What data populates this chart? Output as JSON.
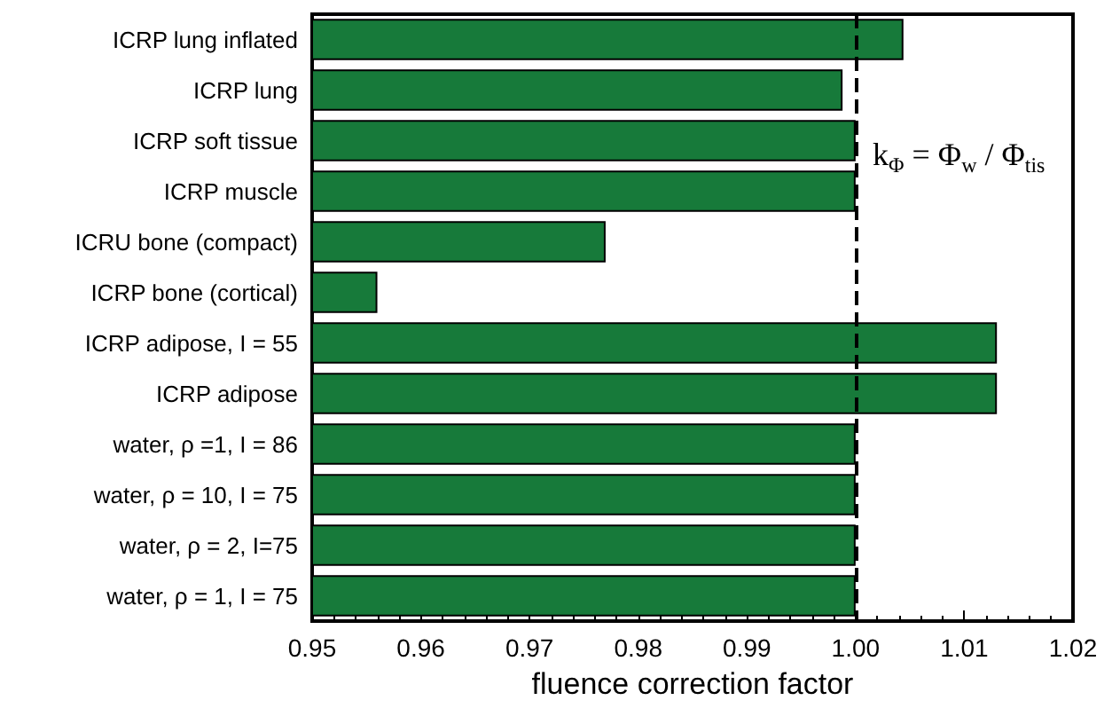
{
  "chart_data": {
    "type": "bar",
    "orientation": "horizontal",
    "xlabel": "fluence correction factor",
    "categories": [
      "ICRP lung inflated",
      "ICRP lung",
      "ICRP soft tissue",
      "ICRP muscle",
      "ICRU bone (compact)",
      "ICRP bone (cortical)",
      "ICRP adipose, I = 55",
      "ICRP adipose",
      "water, ρ =1, I = 86",
      "water, ρ = 10, I = 75",
      "water, ρ = 2, I=75",
      "water, ρ = 1, I = 75"
    ],
    "values": [
      1.0044,
      0.9988,
      1.0,
      1.0,
      0.977,
      0.956,
      1.013,
      1.013,
      1.0,
      1.0,
      1.0,
      1.0
    ],
    "color": "#177a3a",
    "xlim": [
      0.95,
      1.02
    ],
    "xticks": [
      0.95,
      0.96,
      0.97,
      0.98,
      0.99,
      {
        "value": 1.0,
        "label": "1.00"
      },
      1.01,
      1.02
    ],
    "ref_lines": [
      {
        "axis": "x",
        "value": 1.0,
        "color": "#000000",
        "line_style": "dashed"
      }
    ],
    "annotations": [
      "k$_{Φ}$ = Φ$_{w}$ / Φ$_{tis}$"
    ],
    "grid": false
  }
}
